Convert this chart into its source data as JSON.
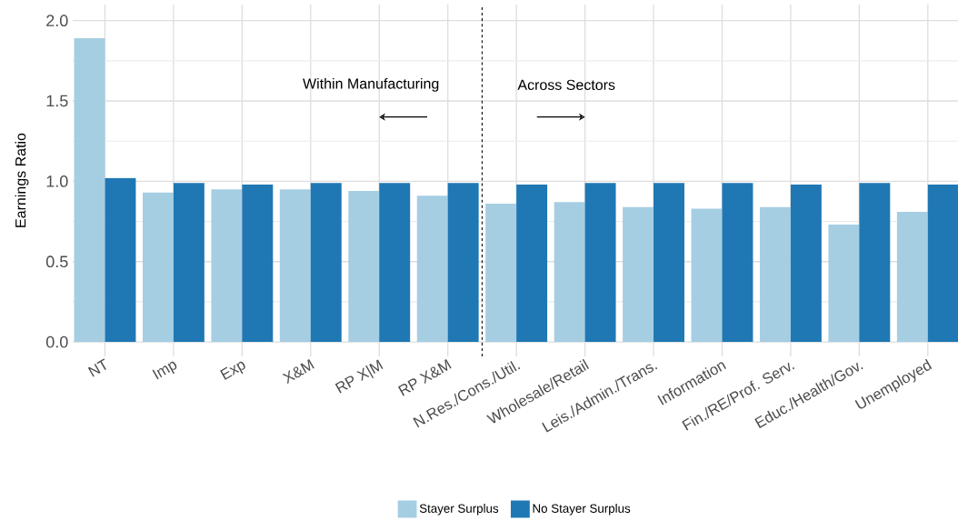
{
  "chart_data": {
    "type": "bar",
    "ylabel": "Earnings Ratio",
    "categories": [
      "NT",
      "Imp",
      "Exp",
      "X&M",
      "RP X|M",
      "RP X&M",
      "N.Res./Cons./Util.",
      "Wholesale/Retail",
      "Leis./Admin./Trans.",
      "Information",
      "Fin./RE/Prof. Serv.",
      "Educ./Health/Gov.",
      "Unemployed"
    ],
    "series": [
      {
        "name": "Stayer Surplus",
        "color": "#a6cee3",
        "values": [
          1.89,
          0.93,
          0.95,
          0.95,
          0.94,
          0.91,
          0.86,
          0.87,
          0.84,
          0.83,
          0.84,
          0.73,
          0.81
        ]
      },
      {
        "name": "No Stayer Surplus",
        "color": "#1f78b4",
        "values": [
          1.02,
          0.99,
          0.98,
          0.99,
          0.99,
          0.99,
          0.98,
          0.99,
          0.99,
          0.99,
          0.98,
          0.99,
          0.98
        ]
      }
    ],
    "ylim": [
      -0.09,
      2.1
    ],
    "yticks": [
      {
        "value": 0,
        "label": "0.0"
      },
      {
        "value": 0.5,
        "label": "0.5"
      },
      {
        "value": 1,
        "label": "1.0"
      },
      {
        "value": 1.5,
        "label": "1.5"
      },
      {
        "value": 2,
        "label": "2.0"
      }
    ],
    "annotations": [
      "Within Manufacturing",
      "Across Sectors"
    ],
    "grid": true,
    "legend": "bottom"
  }
}
